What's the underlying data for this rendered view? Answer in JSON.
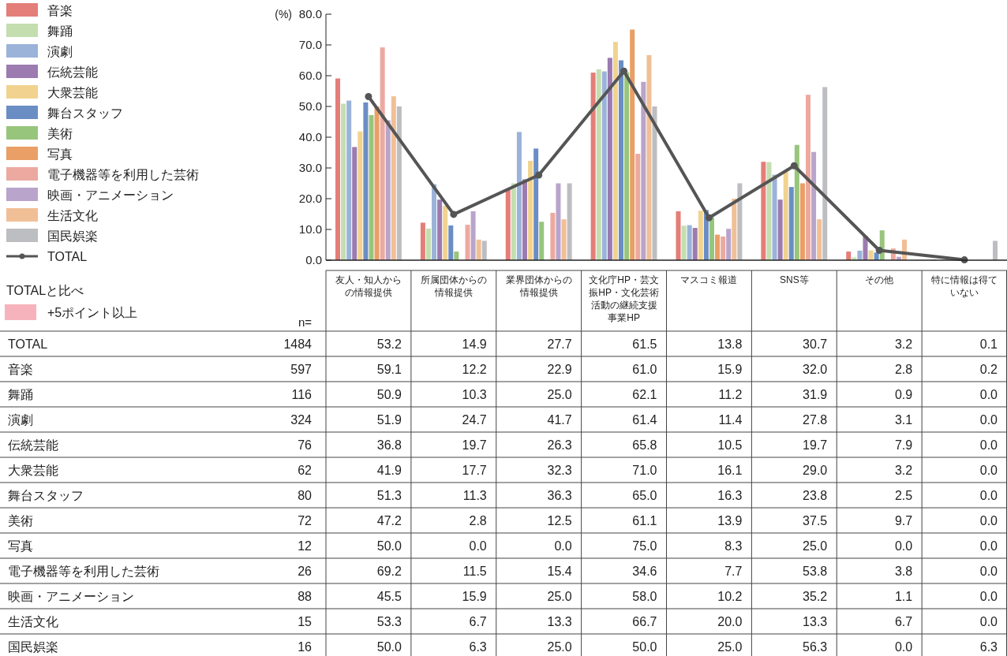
{
  "chart_data": {
    "type": "bar",
    "ylabel": "(%)",
    "legend": "left",
    "categories": [
      "友人・知人からの情報提供",
      "所属団体からの情報提供",
      "業界団体からの情報提供",
      "文化庁HP・芸文振HP・文化芸術活動の継続支援事業HP",
      "マスコミ報道",
      "SNS等",
      "その他",
      "特に情報は得ていない"
    ],
    "ylim": [
      0,
      80
    ],
    "yticks": [
      {
        "value": 0,
        "label": "0.0"
      },
      {
        "value": 10,
        "label": "10.0"
      },
      {
        "value": 20,
        "label": "20.0"
      },
      {
        "value": 30,
        "label": "30.0"
      },
      {
        "value": 40,
        "label": "40.0"
      },
      {
        "value": 50,
        "label": "50.0"
      },
      {
        "value": 60,
        "label": "60.0"
      },
      {
        "value": 70,
        "label": "70.0"
      },
      {
        "value": 80,
        "label": "80.0"
      }
    ],
    "series": [
      {
        "name": "TOTAL",
        "type": "line",
        "color": "#555555",
        "marker": "circle",
        "values": [
          53.2,
          14.9,
          27.7,
          61.5,
          13.8,
          30.7,
          3.2,
          0.1
        ],
        "value_labels": [
          "53.2",
          "14.9",
          "27.7",
          "61.5",
          "13.8",
          "30.7",
          "3.2",
          "0.1"
        ]
      },
      {
        "name": "音楽",
        "color": "#e47e78",
        "values": [
          59.1,
          12.2,
          22.9,
          61.0,
          15.9,
          32.0,
          2.8,
          0.2
        ],
        "value_labels": [
          "59.1",
          "12.2",
          "22.9",
          "61.0",
          "15.9",
          "32.0",
          "2.8",
          "0.2"
        ]
      },
      {
        "name": "舞踊",
        "color": "#c4deb0",
        "values": [
          50.9,
          10.3,
          25.0,
          62.1,
          11.2,
          31.9,
          0.9,
          0.0
        ],
        "value_labels": [
          "50.9",
          "10.3",
          "25.0",
          "62.1",
          "11.2",
          "31.9",
          "0.9",
          "0.0"
        ]
      },
      {
        "name": "演劇",
        "color": "#9bb3d8",
        "values": [
          51.9,
          24.7,
          41.7,
          61.4,
          11.4,
          27.8,
          3.1,
          0.0
        ],
        "value_labels": [
          "51.9",
          "24.7",
          "41.7",
          "61.4",
          "11.4",
          "27.8",
          "3.1",
          "0.0"
        ]
      },
      {
        "name": "伝統芸能",
        "color": "#9b7bb0",
        "values": [
          36.8,
          19.7,
          26.3,
          65.8,
          10.5,
          19.7,
          7.9,
          0.0
        ],
        "value_labels": [
          "36.8",
          "19.7",
          "26.3",
          "65.8",
          "10.5",
          "19.7",
          "7.9",
          "0.0"
        ]
      },
      {
        "name": "大衆芸能",
        "color": "#f1d38f",
        "values": [
          41.9,
          17.7,
          32.3,
          71.0,
          16.1,
          29.0,
          3.2,
          0.0
        ],
        "value_labels": [
          "41.9",
          "17.7",
          "32.3",
          "71.0",
          "16.1",
          "29.0",
          "3.2",
          "0.0"
        ]
      },
      {
        "name": "舞台スタッフ",
        "color": "#6a8ec4",
        "values": [
          51.3,
          11.3,
          36.3,
          65.0,
          16.3,
          23.8,
          2.5,
          0.0
        ],
        "value_labels": [
          "51.3",
          "11.3",
          "36.3",
          "65.0",
          "16.3",
          "23.8",
          "2.5",
          "0.0"
        ]
      },
      {
        "name": "美術",
        "color": "#98c57c",
        "values": [
          47.2,
          2.8,
          12.5,
          61.1,
          13.9,
          37.5,
          9.7,
          0.0
        ],
        "value_labels": [
          "47.2",
          "2.8",
          "12.5",
          "61.1",
          "13.9",
          "37.5",
          "9.7",
          "0.0"
        ]
      },
      {
        "name": "写真",
        "color": "#e99f66",
        "values": [
          50.0,
          0.0,
          0.0,
          75.0,
          8.3,
          25.0,
          0.0,
          0.0
        ],
        "value_labels": [
          "50.0",
          "0.0",
          "0.0",
          "75.0",
          "8.3",
          "25.0",
          "0.0",
          "0.0"
        ]
      },
      {
        "name": "電子機器等を利用した芸術",
        "color": "#eca9a0",
        "values": [
          69.2,
          11.5,
          15.4,
          34.6,
          7.7,
          53.8,
          3.8,
          0.0
        ],
        "value_labels": [
          "69.2",
          "11.5",
          "15.4",
          "34.6",
          "7.7",
          "53.8",
          "3.8",
          "0.0"
        ]
      },
      {
        "name": "映画・アニメーション",
        "color": "#b9a4cb",
        "values": [
          45.5,
          15.9,
          25.0,
          58.0,
          10.2,
          35.2,
          1.1,
          0.0
        ],
        "value_labels": [
          "45.5",
          "15.9",
          "25.0",
          "58.0",
          "10.2",
          "35.2",
          "1.1",
          "0.0"
        ]
      },
      {
        "name": "生活文化",
        "color": "#f1bf96",
        "values": [
          53.3,
          6.7,
          13.3,
          66.7,
          20.0,
          13.3,
          6.7,
          0.0
        ],
        "value_labels": [
          "53.3",
          "6.7",
          "13.3",
          "66.7",
          "20.0",
          "13.3",
          "6.7",
          "0.0"
        ]
      },
      {
        "name": "国民娯楽",
        "color": "#bdbec1",
        "values": [
          50.0,
          6.3,
          25.0,
          50.0,
          25.0,
          56.3,
          0.0,
          6.3
        ],
        "value_labels": [
          "50.0",
          "6.3",
          "25.0",
          "50.0",
          "25.0",
          "56.3",
          "0.0",
          "6.3"
        ]
      }
    ],
    "annotations": [
      "TOTALと比べ",
      "+5ポイント以上",
      "n=",
      "1484",
      "597",
      "116",
      "324",
      "76",
      "62",
      "80",
      "72",
      "12",
      "26",
      "88",
      "15",
      "16"
    ]
  }
}
